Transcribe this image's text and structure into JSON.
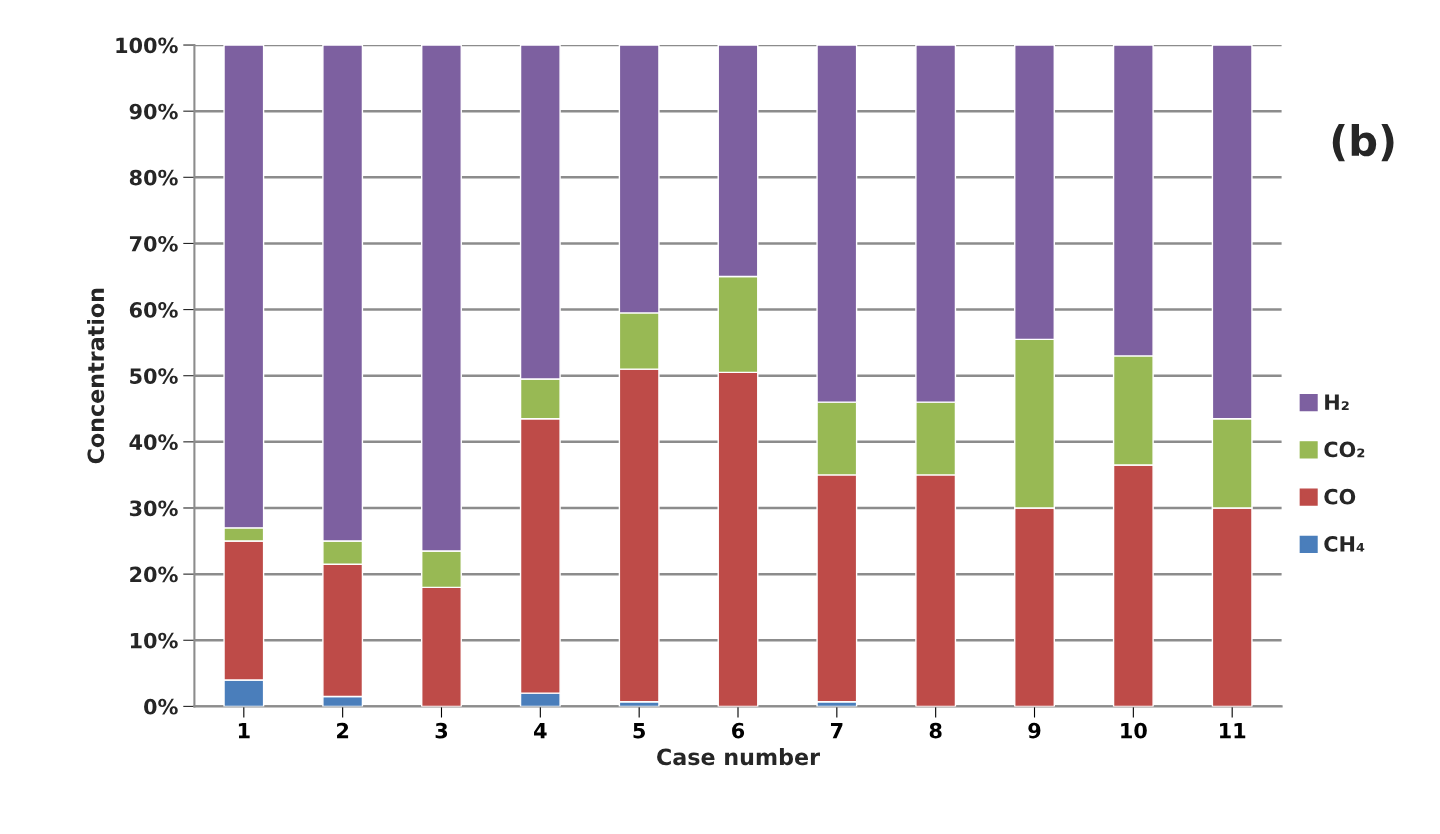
{
  "chart_data": {
    "type": "bar",
    "stacked": true,
    "xlabel": "Case number",
    "ylabel": "Concentration",
    "categories": [
      "1",
      "2",
      "3",
      "4",
      "5",
      "6",
      "7",
      "8",
      "9",
      "10",
      "11"
    ],
    "series": [
      {
        "name": "CH₄",
        "color": "#4a7ebb",
        "values": [
          4,
          1.5,
          null,
          2,
          0.7,
          null,
          0.7,
          null,
          0,
          0,
          0
        ]
      },
      {
        "name": "CO",
        "color": "#be4b48",
        "values": [
          21,
          20,
          18,
          41.5,
          50.3,
          50.5,
          34.3,
          35,
          30,
          36.5,
          30
        ]
      },
      {
        "name": "CO₂",
        "color": "#98b954",
        "values": [
          2,
          3.5,
          5.5,
          6,
          8.5,
          14.5,
          11,
          11,
          25.5,
          16.5,
          13.5
        ]
      },
      {
        "name": "H₂",
        "color": "#7d60a0",
        "values": [
          73,
          75,
          76.5,
          50.5,
          40.5,
          35,
          54,
          54,
          44.5,
          47,
          56.5
        ]
      }
    ],
    "ylim": [
      0,
      100
    ],
    "yticks": [
      {
        "value": 0,
        "label": "0%"
      },
      {
        "value": 10,
        "label": "10%"
      },
      {
        "value": 20,
        "label": "20%"
      },
      {
        "value": 30,
        "label": "30%"
      },
      {
        "value": 40,
        "label": "40%"
      },
      {
        "value": 50,
        "label": "50%"
      },
      {
        "value": 60,
        "label": "60%"
      },
      {
        "value": 70,
        "label": "70%"
      },
      {
        "value": 80,
        "label": "80%"
      },
      {
        "value": 90,
        "label": "90%"
      },
      {
        "value": 100,
        "label": "100%"
      }
    ],
    "grid": "y",
    "legend": "right",
    "annotations": [
      "(b)"
    ]
  }
}
